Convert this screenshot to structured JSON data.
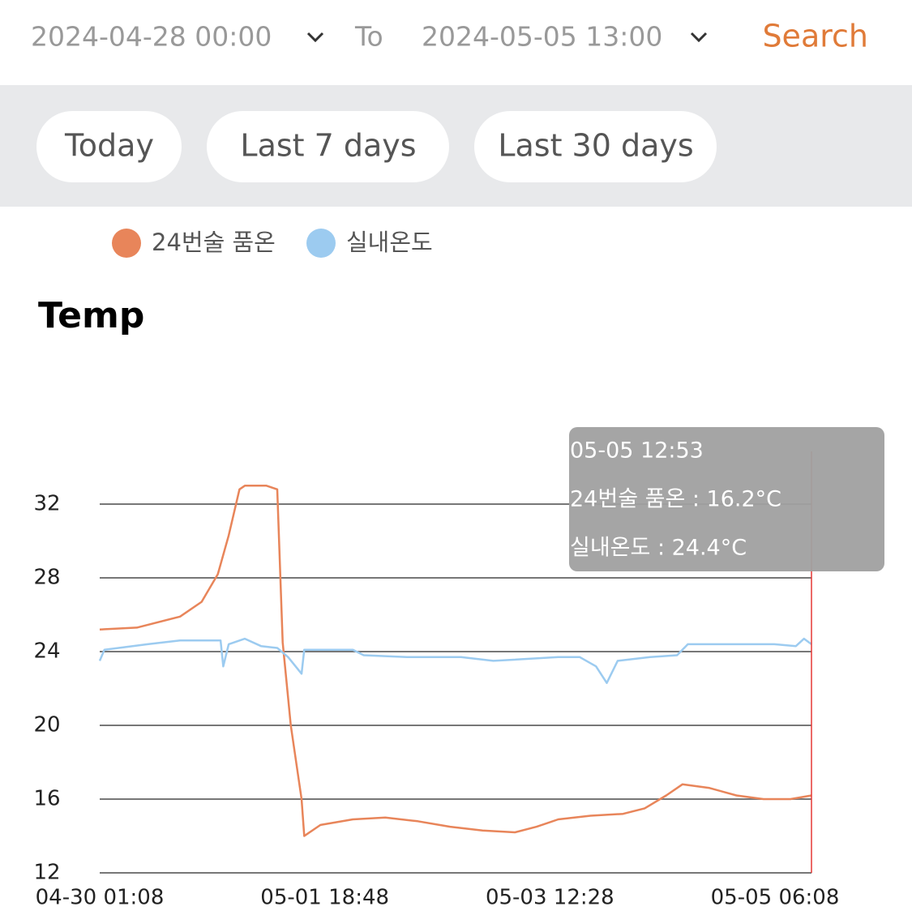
{
  "header": {
    "from": "2024-04-28 00:00",
    "to_label": "To",
    "to": "2024-05-05 13:00",
    "search": "Search"
  },
  "presets": [
    "Today",
    "Last 7 days",
    "Last 30 days"
  ],
  "chart_data": {
    "type": "line",
    "title": "Temp",
    "xlim": [
      "04-30 01:08",
      "05-05 12:53"
    ],
    "xticks": [
      "04-30 01:08",
      "05-01 18:48",
      "05-03 12:28",
      "05-05 06:08"
    ],
    "ylim": [
      12,
      36
    ],
    "yticks": [
      12,
      16,
      20,
      24,
      28,
      32
    ],
    "grid": true,
    "series": [
      {
        "name": "24번술 품온",
        "color": "#e8855a",
        "x": [
          "04-30 01:08",
          "04-30 08:00",
          "04-30 16:00",
          "04-30 20:00",
          "04-30 23:00",
          "05-01 01:00",
          "05-01 03:00",
          "05-01 04:00",
          "05-01 08:00",
          "05-01 10:00",
          "05-01 11:00",
          "05-01 12:30",
          "05-01 14:30",
          "05-01 15:00",
          "05-01 18:00",
          "05-02 00:00",
          "05-02 06:00",
          "05-02 12:00",
          "05-02 18:00",
          "05-03 00:00",
          "05-03 06:00",
          "05-03 10:00",
          "05-03 14:00",
          "05-03 20:00",
          "05-04 02:00",
          "05-04 06:00",
          "05-04 10:00",
          "05-04 13:00",
          "05-04 18:00",
          "05-04 23:00",
          "05-05 04:00",
          "05-05 09:00",
          "05-05 12:53"
        ],
        "values": [
          25.2,
          25.3,
          25.9,
          26.7,
          28.2,
          30.3,
          32.8,
          33.0,
          33.0,
          32.8,
          24.5,
          20.0,
          16.0,
          14.0,
          14.6,
          14.9,
          15.0,
          14.8,
          14.5,
          14.3,
          14.2,
          14.5,
          14.9,
          15.1,
          15.2,
          15.5,
          16.2,
          16.8,
          16.6,
          16.2,
          16.0,
          16.0,
          16.2
        ]
      },
      {
        "name": "실내온도",
        "color": "#9ccbf0",
        "x": [
          "04-30 01:08",
          "04-30 02:00",
          "04-30 10:00",
          "04-30 16:00",
          "04-30 23:30",
          "05-01 00:00",
          "05-01 01:00",
          "05-01 04:00",
          "05-01 07:00",
          "05-01 10:00",
          "05-01 12:00",
          "05-01 14:30",
          "05-01 15:00",
          "05-02 00:00",
          "05-02 02:00",
          "05-02 10:00",
          "05-02 20:00",
          "05-03 02:00",
          "05-03 14:00",
          "05-03 18:00",
          "05-03 21:00",
          "05-03 23:00",
          "05-04 01:00",
          "05-04 07:00",
          "05-04 12:00",
          "05-04 14:00",
          "05-04 22:00",
          "05-05 06:00",
          "05-05 10:00",
          "05-05 11:30",
          "05-05 12:53"
        ],
        "values": [
          23.5,
          24.1,
          24.4,
          24.6,
          24.6,
          23.2,
          24.4,
          24.7,
          24.3,
          24.2,
          23.7,
          22.8,
          24.1,
          24.1,
          23.8,
          23.7,
          23.7,
          23.5,
          23.7,
          23.7,
          23.2,
          22.3,
          23.5,
          23.7,
          23.8,
          24.4,
          24.4,
          24.4,
          24.3,
          24.7,
          24.4
        ]
      }
    ],
    "tooltip": {
      "time": "05-05 12:53",
      "lines": [
        "24번술 품온 : 16.2°C",
        "실내온도 : 24.4°C"
      ]
    }
  }
}
